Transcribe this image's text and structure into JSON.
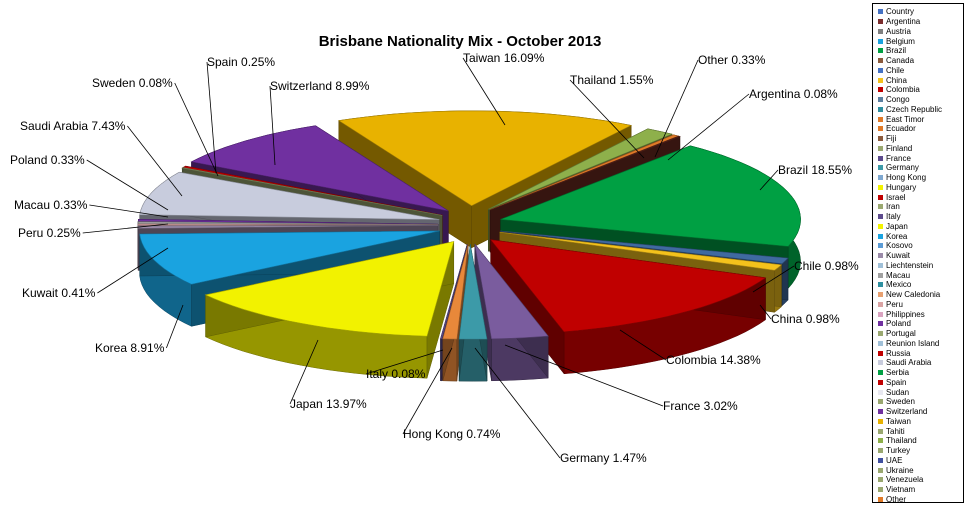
{
  "chart_data": {
    "type": "pie",
    "title": "Brisbane Nationality Mix - October 2013",
    "legend_position": "right",
    "labels_shown": [
      {
        "name": "Taiwan",
        "label": "Taiwan 16.09%",
        "value": 16.09,
        "color": "#E8B200"
      },
      {
        "name": "Thailand",
        "label": "Thailand 1.55%",
        "value": 1.55,
        "color": "#8EB04B"
      },
      {
        "name": "Other",
        "label": "Other 0.33%",
        "value": 0.33,
        "color": "#E07A28"
      },
      {
        "name": "Argentina",
        "label": "Argentina 0.08%",
        "value": 0.08,
        "color": "#6B2A20"
      },
      {
        "name": "Brazil",
        "label": "Brazil 18.55%",
        "value": 18.55,
        "color": "#00A043"
      },
      {
        "name": "Chile",
        "label": "Chile 0.98%",
        "value": 0.98,
        "color": "#3F6AA0"
      },
      {
        "name": "China",
        "label": "China 0.98%",
        "value": 0.98,
        "color": "#F4C21C"
      },
      {
        "name": "Colombia",
        "label": "Colombia 14.38%",
        "value": 14.38,
        "color": "#C00000"
      },
      {
        "name": "France",
        "label": "France 3.02%",
        "value": 3.02,
        "color": "#7A5C9E"
      },
      {
        "name": "Germany",
        "label": "Germany 1.47%",
        "value": 1.47,
        "color": "#3C9AA8"
      },
      {
        "name": "Hong Kong",
        "label": "Hong Kong 0.74%",
        "value": 0.74,
        "color": "#E8883A"
      },
      {
        "name": "Italy",
        "label": "Italy 0.08%",
        "value": 0.08,
        "color": "#5C4A8C"
      },
      {
        "name": "Japan",
        "label": "Japan 13.97%",
        "value": 13.97,
        "color": "#F2F200"
      },
      {
        "name": "Korea",
        "label": "Korea 8.91%",
        "value": 8.91,
        "color": "#1AA3E0"
      },
      {
        "name": "Kuwait",
        "label": "Kuwait 0.41%",
        "value": 0.41,
        "color": "#9A8AA8"
      },
      {
        "name": "Peru",
        "label": "Peru 0.25%",
        "value": 0.25,
        "color": "#D9A3A3"
      },
      {
        "name": "Macau",
        "label": "Macau 0.33%",
        "value": 0.33,
        "color": "#A0A0A0"
      },
      {
        "name": "Poland",
        "label": "Poland 0.33%",
        "value": 0.33,
        "color": "#7030A0"
      },
      {
        "name": "Saudi Arabia",
        "label": "Saudi Arabia 7.43%",
        "value": 7.43,
        "color": "#C8CCDD"
      },
      {
        "name": "Sweden",
        "label": "Sweden 0.08%",
        "value": 0.08,
        "color": "#9AA870"
      },
      {
        "name": "Spain",
        "label": "Spain 0.25%",
        "value": 0.25,
        "color": "#C00000"
      },
      {
        "name": "Switzerland",
        "label": "Switzerland 8.99%",
        "value": 8.99,
        "color": "#7030A0"
      }
    ],
    "legend": [
      {
        "label": "Country",
        "color": "#4472C4"
      },
      {
        "label": "Argentina",
        "color": "#7B2C2C"
      },
      {
        "label": "Austria",
        "color": "#7F7F7F"
      },
      {
        "label": "Belgium",
        "color": "#1AA3E0"
      },
      {
        "label": "Brazil",
        "color": "#00A043"
      },
      {
        "label": "Canada",
        "color": "#8B5A3C"
      },
      {
        "label": "Chile",
        "color": "#4472C4"
      },
      {
        "label": "China",
        "color": "#F4C21C"
      },
      {
        "label": "Colombia",
        "color": "#C00000"
      },
      {
        "label": "Congo",
        "color": "#5B7FA0"
      },
      {
        "label": "Czech Republic",
        "color": "#2E8FA0"
      },
      {
        "label": "East Timor",
        "color": "#E07A28"
      },
      {
        "label": "Ecuador",
        "color": "#E07A28"
      },
      {
        "label": "Fiji",
        "color": "#8B5A3C"
      },
      {
        "label": "Finland",
        "color": "#9AA870"
      },
      {
        "label": "France",
        "color": "#5C4A8C"
      },
      {
        "label": "Germany",
        "color": "#3C9AA8"
      },
      {
        "label": "Hong Kong",
        "color": "#7FA8D0"
      },
      {
        "label": "Hungary",
        "color": "#F2F200"
      },
      {
        "label": "Israel",
        "color": "#C00000"
      },
      {
        "label": "Iran",
        "color": "#9AA870"
      },
      {
        "label": "Italy",
        "color": "#5C4A8C"
      },
      {
        "label": "Japan",
        "color": "#F2F200"
      },
      {
        "label": "Korea",
        "color": "#1AA3E0"
      },
      {
        "label": "Kosovo",
        "color": "#5B9BD5"
      },
      {
        "label": "Kuwait",
        "color": "#9A8AA8"
      },
      {
        "label": "Liechtenstein",
        "color": "#A0C0D8"
      },
      {
        "label": "Macau",
        "color": "#A0A0A0"
      },
      {
        "label": "Mexico",
        "color": "#2E8FA0"
      },
      {
        "label": "New Caledonia",
        "color": "#E8A070"
      },
      {
        "label": "Peru",
        "color": "#D9A3A3"
      },
      {
        "label": "Philippines",
        "color": "#D9A3C0"
      },
      {
        "label": "Poland",
        "color": "#7030A0"
      },
      {
        "label": "Portugal",
        "color": "#9AA870"
      },
      {
        "label": "Reunion Island",
        "color": "#A0C0D8"
      },
      {
        "label": "Russia",
        "color": "#C00000"
      },
      {
        "label": "Saudi Arabia",
        "color": "#C8CCDD"
      },
      {
        "label": "Serbia",
        "color": "#00A043"
      },
      {
        "label": "Spain",
        "color": "#C00000"
      },
      {
        "label": "Sudan",
        "color": "#E8E8F0"
      },
      {
        "label": "Sweden",
        "color": "#9AA870"
      },
      {
        "label": "Switzerland",
        "color": "#7030A0"
      },
      {
        "label": "Taiwan",
        "color": "#E8B200"
      },
      {
        "label": "Tahiti",
        "color": "#9AA870"
      },
      {
        "label": "Thailand",
        "color": "#8EB04B"
      },
      {
        "label": "Turkey",
        "color": "#9AA870"
      },
      {
        "label": "UAE",
        "color": "#3F4FA0"
      },
      {
        "label": "Ukraine",
        "color": "#9AA870"
      },
      {
        "label": "Venezuela",
        "color": "#9AA870"
      },
      {
        "label": "Vietnam",
        "color": "#9AA870"
      },
      {
        "label": "Other",
        "color": "#E07A28"
      }
    ]
  }
}
